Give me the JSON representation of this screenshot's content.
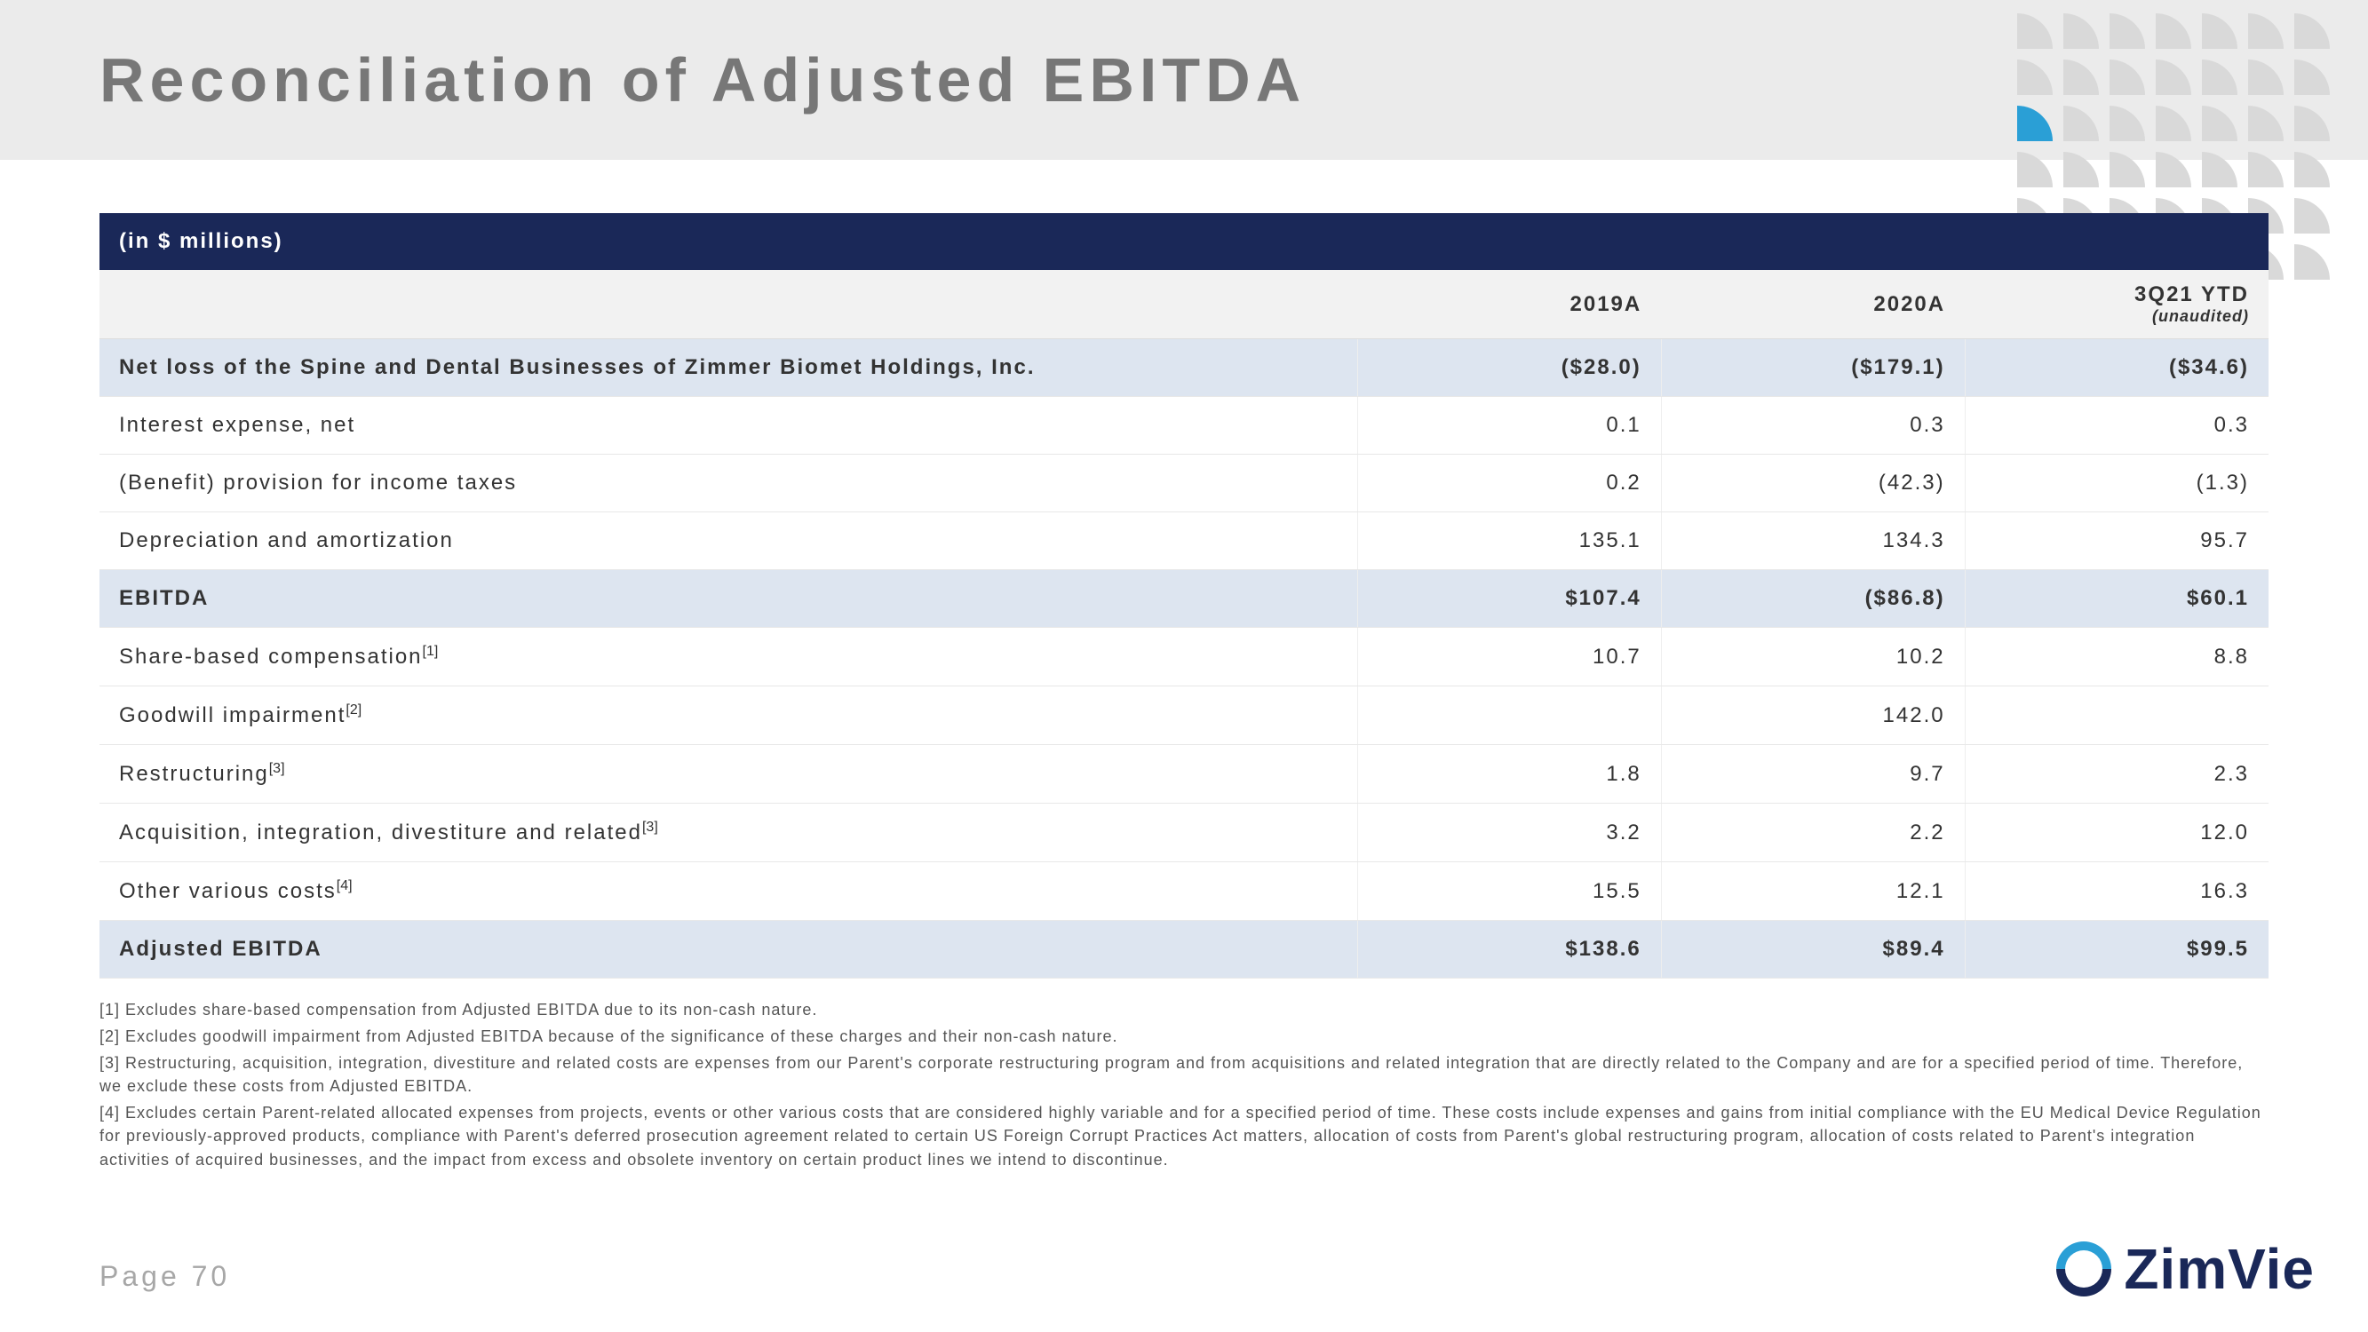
{
  "title": "Reconciliation of Adjusted EBITDA",
  "table": {
    "header_band": "(in $ millions)",
    "columns": [
      "",
      "2019A",
      "2020A",
      "3Q21 YTD"
    ],
    "col3_sub": "(unaudited)",
    "rows": [
      {
        "label": "Net loss of the Spine and Dental Businesses of Zimmer Biomet Holdings, Inc.",
        "v": [
          "($28.0)",
          "($179.1)",
          "($34.6)"
        ],
        "hl": true,
        "bold": true
      },
      {
        "label": "Interest expense, net",
        "v": [
          "0.1",
          "0.3",
          "0.3"
        ]
      },
      {
        "label": "(Benefit) provision for income taxes",
        "v": [
          "0.2",
          "(42.3)",
          "(1.3)"
        ]
      },
      {
        "label": "Depreciation and amortization",
        "v": [
          "135.1",
          "134.3",
          "95.7"
        ]
      },
      {
        "label": "EBITDA",
        "v": [
          "$107.4",
          "($86.8)",
          "$60.1"
        ],
        "hl": true,
        "bold": true
      },
      {
        "label": "Share-based compensation",
        "sup": "[1]",
        "v": [
          "10.7",
          "10.2",
          "8.8"
        ]
      },
      {
        "label": "Goodwill impairment",
        "sup": "[2]",
        "v": [
          "",
          "142.0",
          ""
        ]
      },
      {
        "label": "Restructuring",
        "sup": "[3]",
        "v": [
          "1.8",
          "9.7",
          "2.3"
        ]
      },
      {
        "label": "Acquisition, integration, divestiture and related",
        "sup": "[3]",
        "v": [
          "3.2",
          "2.2",
          "12.0"
        ]
      },
      {
        "label": "Other various costs",
        "sup": "[4]",
        "v": [
          "15.5",
          "12.1",
          "16.3"
        ]
      },
      {
        "label": "Adjusted EBITDA",
        "v": [
          "$138.6",
          "$89.4",
          "$99.5"
        ],
        "hl": true,
        "bold": true
      }
    ]
  },
  "footnotes": [
    "[1] Excludes share-based compensation from Adjusted EBITDA due to its non-cash nature.",
    "[2] Excludes goodwill impairment from Adjusted EBITDA because of the significance of these charges and their non-cash nature.",
    "[3] Restructuring, acquisition, integration, divestiture and related costs are expenses from our Parent's corporate restructuring program and from acquisitions and related integration that are directly related to the Company and are for a specified period of time. Therefore, we exclude these costs from Adjusted EBITDA.",
    "[4] Excludes certain Parent-related allocated expenses from projects, events or other various costs that are considered highly variable and for a specified period of time. These costs include expenses and gains from initial compliance with the EU Medical Device Regulation for previously-approved products, compliance with Parent's deferred prosecution agreement related to certain US Foreign Corrupt Practices Act matters, allocation of costs from Parent's global restructuring program, allocation of costs related to Parent's integration activities of acquired businesses, and the impact from excess and obsolete inventory on certain product lines we intend to discontinue."
  ],
  "page_label": "Page 70",
  "logo_text": "ZimVie",
  "decor": {
    "rows": 6,
    "cols": 7,
    "blue_pos": [
      2,
      0
    ]
  }
}
